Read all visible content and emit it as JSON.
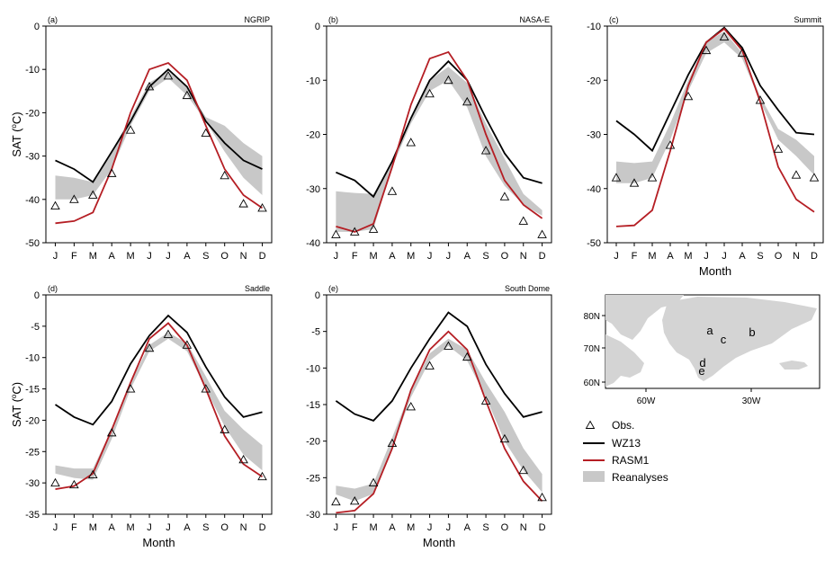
{
  "month_ticks": [
    "J",
    "F",
    "M",
    "A",
    "M",
    "J",
    "J",
    "A",
    "S",
    "O",
    "N",
    "D"
  ],
  "chart_data": [
    {
      "type": "line",
      "panel": "(a)",
      "site": "NGRIP",
      "ylabel": "SAT (",
      "ylabel_unit": "C)",
      "xlabel": "",
      "ylim": [
        -50,
        0
      ],
      "yticks": [
        0,
        -10,
        -20,
        -30,
        -40,
        -50
      ],
      "obs": [
        -41.5,
        -40,
        -39,
        -34,
        -24,
        -14,
        -11.5,
        -16,
        -24.7,
        -34.5,
        -41,
        -42
      ],
      "wz13": [
        -31,
        -33,
        -36,
        -29,
        -22,
        -14,
        -10,
        -14,
        -22,
        -27,
        -31,
        -33
      ],
      "rasm1": [
        -45.5,
        -45,
        -43,
        -33,
        -20,
        -10,
        -8.5,
        -12.5,
        -23,
        -33,
        -39,
        -42
      ],
      "rean_upper": [
        -34.5,
        -35,
        -36,
        -29,
        -21,
        -13,
        -10.5,
        -14,
        -21,
        -23,
        -27,
        -30
      ],
      "rean_lower": [
        -40,
        -40,
        -39,
        -33,
        -23,
        -15,
        -12,
        -16,
        -22,
        -29,
        -35,
        -39
      ]
    },
    {
      "type": "line",
      "panel": "(b)",
      "site": "NASA-E",
      "ylabel": "",
      "xlabel": "",
      "ylim": [
        -40,
        0
      ],
      "yticks": [
        0,
        -10,
        -20,
        -30,
        -40
      ],
      "obs": [
        -38.5,
        -38,
        -37.5,
        -30.5,
        -21.5,
        -12.5,
        -10,
        -14,
        -23,
        -31.5,
        -36,
        -38.5
      ],
      "wz13": [
        -27,
        -28.5,
        -31.5,
        -25,
        -17,
        -10,
        -6.5,
        -10,
        -17,
        -23.5,
        -28,
        -29
      ],
      "rasm1": [
        -37,
        -38,
        -36.5,
        -26,
        -14.5,
        -6,
        -4.8,
        -10,
        -20,
        -28.5,
        -33,
        -35.5
      ],
      "rean_upper": [
        -30.5,
        -30.8,
        -31,
        -25,
        -17,
        -10,
        -7.5,
        -10.5,
        -18,
        -24.5,
        -31,
        -34
      ],
      "rean_lower": [
        -38,
        -38,
        -37.5,
        -26,
        -18,
        -12,
        -10,
        -15,
        -24,
        -29.5,
        -33,
        -35
      ]
    },
    {
      "type": "line",
      "panel": "(c)",
      "site": "Summit",
      "ylabel": "",
      "xlabel": "Month",
      "ylim": [
        -50,
        -10
      ],
      "yticks": [
        -10,
        -20,
        -30,
        -40,
        -50
      ],
      "obs": [
        -38,
        -39,
        -38,
        -32,
        -23,
        -14.5,
        -12,
        -15,
        -23.7,
        -32.7,
        -37.5,
        -38
      ],
      "wz13": [
        -27.5,
        -30,
        -33,
        -26,
        -19,
        -13,
        -10.3,
        -14,
        -21,
        -25.5,
        -29.7,
        -30
      ],
      "rasm1": [
        -47,
        -46.8,
        -44,
        -33,
        -21,
        -13,
        -10.5,
        -14.5,
        -24,
        -36,
        -42,
        -44.3
      ],
      "rean_upper": [
        -35,
        -35.3,
        -35,
        -28,
        -20,
        -13,
        -11,
        -15,
        -23,
        -29,
        -31,
        -34
      ],
      "rean_lower": [
        -39,
        -39,
        -38,
        -31,
        -22,
        -15,
        -13,
        -16,
        -24,
        -31,
        -34,
        -37.5
      ]
    },
    {
      "type": "line",
      "panel": "(d)",
      "site": "Saddle",
      "ylabel": "SAT (",
      "ylabel_unit": "C)",
      "xlabel": "Month",
      "ylim": [
        -35,
        0
      ],
      "yticks": [
        0,
        -5,
        -10,
        -15,
        -20,
        -25,
        -30,
        -35
      ],
      "obs": [
        -30,
        -30.3,
        -28.7,
        -22,
        -15,
        -8.5,
        -6.3,
        -8,
        -15,
        -21.5,
        -26.3,
        -29
      ],
      "wz13": [
        -17.5,
        -19.5,
        -20.7,
        -17,
        -11,
        -6.5,
        -3.3,
        -6,
        -11.5,
        -16.3,
        -19.5,
        -18.7
      ],
      "rasm1": [
        -31,
        -30.5,
        -28.5,
        -21.5,
        -14,
        -7,
        -4.5,
        -8,
        -15,
        -22.5,
        -27,
        -29
      ],
      "rean_upper": [
        -27.2,
        -27.7,
        -27.7,
        -21.4,
        -14,
        -8,
        -6,
        -7.7,
        -13,
        -18.5,
        -21.5,
        -24
      ],
      "rean_lower": [
        -28.5,
        -29.2,
        -29.5,
        -23,
        -15,
        -9,
        -7,
        -9,
        -15,
        -21,
        -25.5,
        -28
      ]
    },
    {
      "type": "line",
      "panel": "(e)",
      "site": "South Dome",
      "ylabel": "",
      "xlabel": "Month",
      "ylim": [
        -30,
        0
      ],
      "yticks": [
        0,
        -5,
        -10,
        -15,
        -20,
        -25,
        -30
      ],
      "obs": [
        -28.3,
        -28.2,
        -25.7,
        -20.3,
        -15.3,
        -9.7,
        -7,
        -8.5,
        -14.5,
        -19.7,
        -24,
        -27.7
      ],
      "wz13": [
        -14.5,
        -16.3,
        -17.2,
        -14.5,
        -10,
        -6,
        -2.4,
        -4.3,
        -9.5,
        -13.5,
        -16.7,
        -16
      ],
      "rasm1": [
        -29.8,
        -29.5,
        -27.2,
        -21,
        -13,
        -7.5,
        -5,
        -7.5,
        -14.5,
        -21,
        -25.5,
        -28.2
      ],
      "rean_upper": [
        -26.1,
        -26.5,
        -25.8,
        -19.5,
        -13,
        -8,
        -6,
        -7.5,
        -12,
        -16,
        -21,
        -24.5
      ],
      "rean_lower": [
        -27.3,
        -28.2,
        -27.2,
        -21,
        -14,
        -9,
        -7,
        -9,
        -14,
        -20,
        -24,
        -27
      ]
    }
  ],
  "map": {
    "xticks": [
      "60W",
      "30W"
    ],
    "yticks": [
      "80N",
      "70N",
      "60N"
    ],
    "site_labels": [
      "a",
      "b",
      "c",
      "d",
      "e"
    ]
  },
  "legend": {
    "obs": "Obs.",
    "wz13": "WZ13",
    "rasm1": "RASM1",
    "reanalyses": "Reanalyses"
  },
  "colors": {
    "wz13": "#000000",
    "rasm1": "#b51e24",
    "reanalyses": "#c8c8c8",
    "obs": "#000000",
    "land": "#d4d4d4"
  }
}
